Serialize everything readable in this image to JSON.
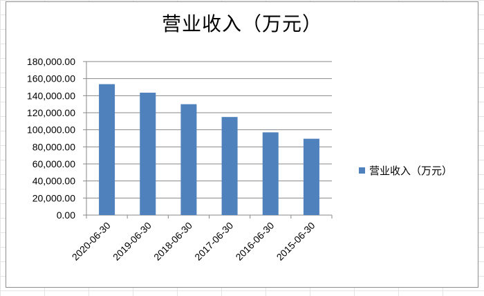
{
  "chart_data": {
    "type": "bar",
    "title": "营业收入（万元）",
    "categories": [
      "2020-06-30",
      "2019-06-30",
      "2018-06-30",
      "2017-06-30",
      "2016-06-30",
      "2015-06-30"
    ],
    "series": [
      {
        "name": "营业收入（万元）",
        "values": [
          153500,
          143500,
          130000,
          115000,
          97000,
          89500
        ],
        "color": "#4f81bd"
      }
    ],
    "yticks": [
      "0.00",
      "20,000.00",
      "40,000.00",
      "60,000.00",
      "80,000.00",
      "100,000.00",
      "120,000.00",
      "140,000.00",
      "160,000.00",
      "180,000.00"
    ],
    "ylim": [
      0,
      180000
    ],
    "grid": true,
    "legend_position": "right"
  }
}
